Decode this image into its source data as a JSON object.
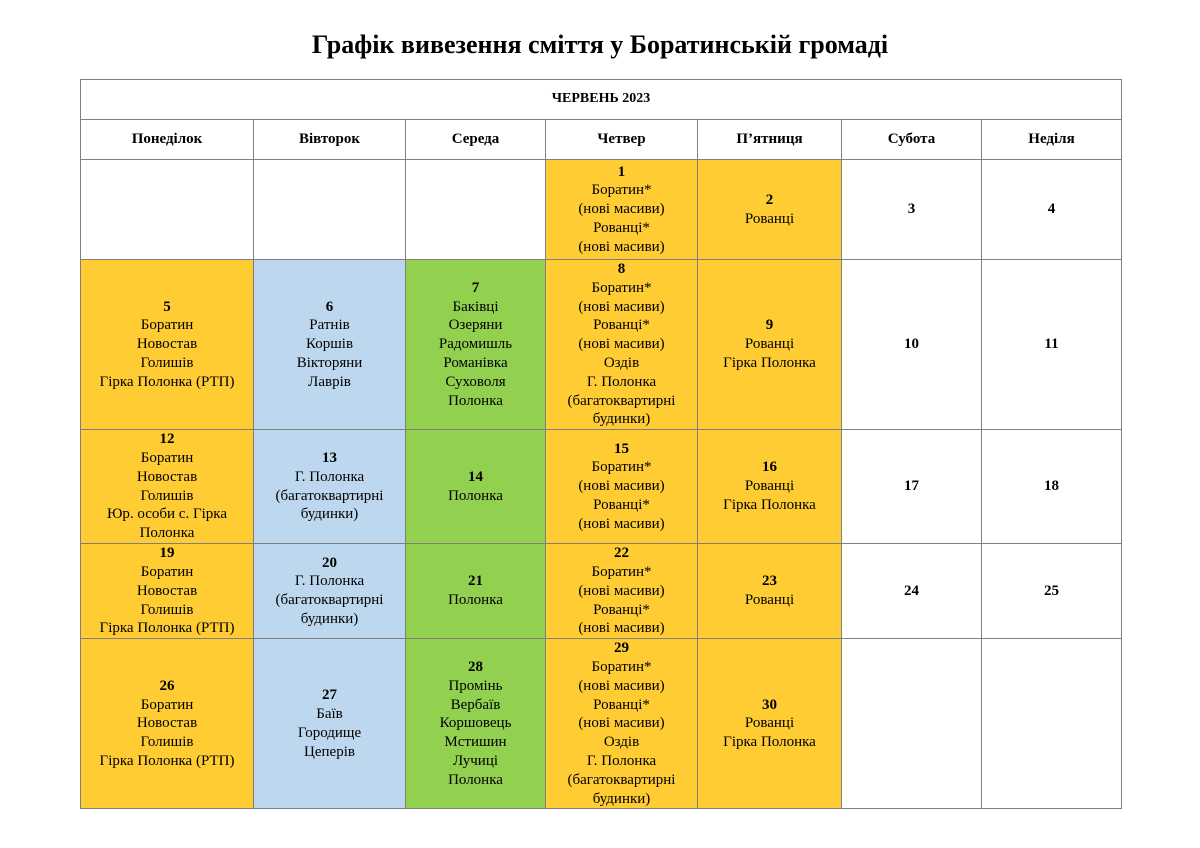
{
  "title": "Графік вивезення сміття у Боратинській громаді",
  "month": "ЧЕРВЕНЬ 2023",
  "weekdays": [
    "Понеділок",
    "Вівторок",
    "Середа",
    "Четвер",
    "П’ятниця",
    "Субота",
    "Неділя"
  ],
  "colors": {
    "yellow": "#ffcd33",
    "blue": "#bdd7ee",
    "green": "#92d050"
  },
  "weeks": [
    [
      {
        "day": "",
        "lines": [],
        "color": ""
      },
      {
        "day": "",
        "lines": [],
        "color": ""
      },
      {
        "day": "",
        "lines": [],
        "color": ""
      },
      {
        "day": "1",
        "lines": [
          "Боратин*",
          "(нові масиви)",
          "Рованці*",
          "(нові масиви)"
        ],
        "color": "yellow"
      },
      {
        "day": "2",
        "lines": [
          "Рованці"
        ],
        "color": "yellow"
      },
      {
        "day": "3",
        "lines": [],
        "color": ""
      },
      {
        "day": "4",
        "lines": [],
        "color": ""
      }
    ],
    [
      {
        "day": "5",
        "lines": [
          "Боратин",
          "Новостав",
          "Голишів",
          "Гірка Полонка (РТП)"
        ],
        "color": "yellow"
      },
      {
        "day": "6",
        "lines": [
          "Ратнів",
          "Коршів",
          "Вікторяни",
          "Лаврів"
        ],
        "color": "blue"
      },
      {
        "day": "7",
        "lines": [
          "Баківці",
          "Озеряни",
          "Радомишль",
          "Романівка",
          "Суховоля",
          "Полонка"
        ],
        "color": "green"
      },
      {
        "day": "8",
        "lines": [
          "Боратин*",
          "(нові масиви)",
          "Рованці*",
          "(нові масиви)",
          "Оздів",
          "Г. Полонка",
          "(багатоквартирні",
          "будинки)"
        ],
        "color": "yellow"
      },
      {
        "day": "9",
        "lines": [
          "Рованці",
          "Гірка Полонка"
        ],
        "color": "yellow"
      },
      {
        "day": "10",
        "lines": [],
        "color": ""
      },
      {
        "day": "11",
        "lines": [],
        "color": ""
      }
    ],
    [
      {
        "day": "12",
        "lines": [
          "Боратин",
          "Новостав",
          "Голишів",
          "Юр. особи с. Гірка",
          "Полонка"
        ],
        "color": "yellow"
      },
      {
        "day": "13",
        "lines": [
          "Г. Полонка",
          "(багатоквартирні",
          "будинки)"
        ],
        "color": "blue"
      },
      {
        "day": "14",
        "lines": [
          "Полонка"
        ],
        "color": "green"
      },
      {
        "day": "15",
        "lines": [
          "Боратин*",
          "(нові масиви)",
          "Рованці*",
          "(нові масиви)"
        ],
        "color": "yellow"
      },
      {
        "day": "16",
        "lines": [
          "Рованці",
          "Гірка Полонка"
        ],
        "color": "yellow"
      },
      {
        "day": "17",
        "lines": [],
        "color": ""
      },
      {
        "day": "18",
        "lines": [],
        "color": ""
      }
    ],
    [
      {
        "day": "19",
        "lines": [
          "Боратин",
          "Новостав",
          "Голишів",
          "Гірка Полонка (РТП)"
        ],
        "color": "yellow"
      },
      {
        "day": "20",
        "lines": [
          "Г. Полонка",
          "(багатоквартирні",
          "будинки)"
        ],
        "color": "blue"
      },
      {
        "day": "21",
        "lines": [
          "Полонка"
        ],
        "color": "green"
      },
      {
        "day": "22",
        "lines": [
          "Боратин*",
          "(нові масиви)",
          "Рованці*",
          "(нові масиви)"
        ],
        "color": "yellow"
      },
      {
        "day": "23",
        "lines": [
          "Рованці"
        ],
        "color": "yellow"
      },
      {
        "day": "24",
        "lines": [],
        "color": ""
      },
      {
        "day": "25",
        "lines": [],
        "color": ""
      }
    ],
    [
      {
        "day": "26",
        "lines": [
          "Боратин",
          "Новостав",
          "Голишів",
          "Гірка Полонка (РТП)"
        ],
        "color": "yellow"
      },
      {
        "day": "27",
        "lines": [
          "Баїв",
          "Городище",
          "Цеперів"
        ],
        "color": "blue"
      },
      {
        "day": "28",
        "lines": [
          "Промінь",
          "Вербаїв",
          "Коршовець",
          "Мстишин",
          "Лучиці",
          "Полонка"
        ],
        "color": "green"
      },
      {
        "day": "29",
        "lines": [
          "Боратин*",
          "(нові масиви)",
          "Рованці*",
          "(нові масиви)",
          "Оздів",
          "Г. Полонка",
          "(багатоквартирні",
          "будинки)"
        ],
        "color": "yellow"
      },
      {
        "day": "30",
        "lines": [
          "Рованці",
          "Гірка Полонка"
        ],
        "color": "yellow"
      },
      {
        "day": "",
        "lines": [],
        "color": ""
      },
      {
        "day": "",
        "lines": [],
        "color": ""
      }
    ]
  ]
}
